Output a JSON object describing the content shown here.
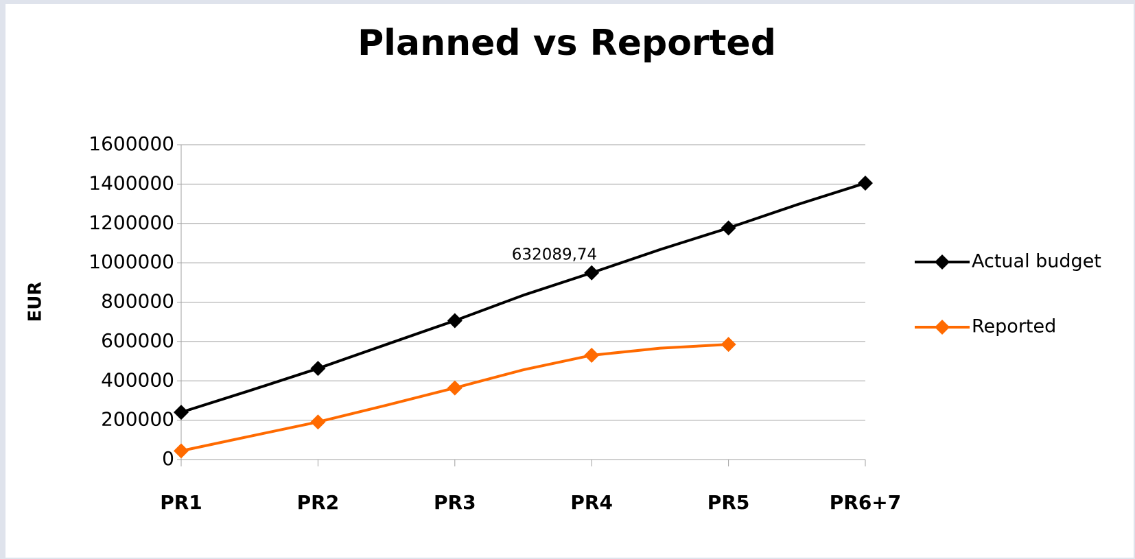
{
  "chart_data": {
    "type": "line",
    "title": "Planned vs Reported",
    "y_label": "EUR",
    "categories": [
      "PR1",
      null,
      "PR2",
      null,
      "PR3",
      null,
      "PR4",
      null,
      "PR5",
      null,
      "PR6+7"
    ],
    "series": [
      {
        "name": "Actual budget",
        "color": "#000000",
        "values": [
          240000,
          350000,
          463000,
          585000,
          706000,
          835000,
          949000,
          1067000,
          1177000,
          1295000,
          1405000
        ]
      },
      {
        "name": "Reported",
        "color": "#ff6a00",
        "values": [
          44000,
          118000,
          191000,
          276000,
          364000,
          456000,
          530000,
          566000,
          585000,
          null,
          null
        ]
      }
    ],
    "annotations": [
      "632089,74"
    ],
    "ylim": [
      0,
      1600000
    ],
    "yticks": [
      0,
      200000,
      400000,
      600000,
      800000,
      1000000,
      1200000,
      1400000,
      1600000
    ],
    "grid": true,
    "legend": "right"
  }
}
